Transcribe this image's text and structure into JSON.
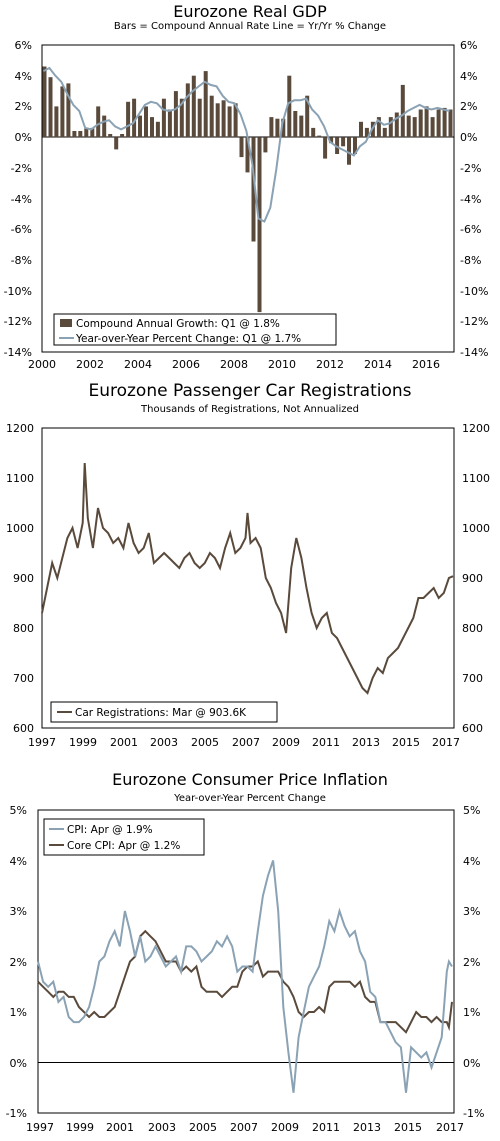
{
  "charts": [
    {
      "title": "Eurozone Real GDP",
      "subtitle": "Bars = Compound Annual Rate      Line = Yr/Yr % Change",
      "y_ticks": [
        "6%",
        "4%",
        "2%",
        "0%",
        "-2%",
        "-4%",
        "-6%",
        "-8%",
        "-10%",
        "-12%",
        "-14%"
      ],
      "x_ticks": [
        "2000",
        "2002",
        "2004",
        "2006",
        "2008",
        "2010",
        "2012",
        "2014",
        "2016"
      ],
      "legend": [
        "Compound Annual Growth: Q1 @ 1.8%",
        "Year-over-Year Percent Change: Q1 @ 1.7%"
      ]
    },
    {
      "title": "Eurozone Passenger Car Registrations",
      "subtitle": "Thousands of Registrations, Not Annualized",
      "y_ticks": [
        "1200",
        "1100",
        "1000",
        "900",
        "800",
        "700",
        "600"
      ],
      "x_ticks": [
        "1997",
        "1999",
        "2001",
        "2003",
        "2005",
        "2007",
        "2009",
        "2011",
        "2013",
        "2015",
        "2017"
      ],
      "legend": [
        "Car Registrations: Mar @ 903.6K"
      ]
    },
    {
      "title": "Eurozone Consumer Price Inflation",
      "subtitle": "Year-over-Year Percent Change",
      "y_ticks": [
        "5%",
        "4%",
        "3%",
        "2%",
        "1%",
        "0%",
        "-1%"
      ],
      "x_ticks": [
        "1997",
        "1999",
        "2001",
        "2003",
        "2005",
        "2007",
        "2009",
        "2011",
        "2013",
        "2015",
        "2017"
      ],
      "legend": [
        "CPI: Apr @ 1.9%",
        "Core CPI: Apr @ 1.2%"
      ]
    }
  ],
  "colors": {
    "bar": "#5a4a3c",
    "line_blue": "#8aa2b4",
    "line_brown": "#5a4a3c",
    "axis": "#000000"
  },
  "chart_data": [
    {
      "type": "bar",
      "title": "Eurozone Real GDP",
      "xlim": [
        2000,
        2017.25
      ],
      "ylim": [
        -14,
        6
      ],
      "y_unit": "%",
      "series": [
        {
          "name": "Compound Annual Growth",
          "x": [
            2000,
            2000.25,
            2000.5,
            2000.75,
            2001,
            2001.25,
            2001.5,
            2001.75,
            2002,
            2002.25,
            2002.5,
            2002.75,
            2003,
            2003.25,
            2003.5,
            2003.75,
            2004,
            2004.25,
            2004.5,
            2004.75,
            2005,
            2005.25,
            2005.5,
            2005.75,
            2006,
            2006.25,
            2006.5,
            2006.75,
            2007,
            2007.25,
            2007.5,
            2007.75,
            2008,
            2008.25,
            2008.5,
            2008.75,
            2009,
            2009.25,
            2009.5,
            2009.75,
            2010,
            2010.25,
            2010.5,
            2010.75,
            2011,
            2011.25,
            2011.5,
            2011.75,
            2012,
            2012.25,
            2012.5,
            2012.75,
            2013,
            2013.25,
            2013.5,
            2013.75,
            2014,
            2014.25,
            2014.5,
            2014.75,
            2015,
            2015.25,
            2015.5,
            2015.75,
            2016,
            2016.25,
            2016.5,
            2016.75,
            2017
          ],
          "values": [
            4.6,
            3.9,
            2.0,
            3.3,
            3.5,
            0.4,
            0.4,
            0.6,
            0.6,
            2.0,
            1.4,
            0.2,
            -0.8,
            0.2,
            2.3,
            2.5,
            1.4,
            2.0,
            1.3,
            1.0,
            2.5,
            1.8,
            3.0,
            2.5,
            3.5,
            4.0,
            2.5,
            4.3,
            2.7,
            2.2,
            2.4,
            2.0,
            2.2,
            -1.3,
            -2.3,
            -6.8,
            -11.4,
            -1.0,
            1.3,
            1.2,
            1.2,
            4.0,
            1.7,
            1.4,
            2.7,
            0.6,
            0.1,
            -1.4,
            -0.4,
            -1.1,
            -0.6,
            -1.8,
            -1.1,
            1.0,
            0.6,
            1.0,
            1.3,
            0.6,
            1.3,
            1.6,
            3.4,
            1.4,
            1.3,
            1.8,
            2.0,
            1.3,
            1.8,
            1.9,
            1.8
          ]
        },
        {
          "name": "Year-over-Year Percent Change",
          "type": "line",
          "x": [
            2000,
            2000.25,
            2000.5,
            2000.75,
            2001,
            2001.25,
            2001.5,
            2001.75,
            2002,
            2002.25,
            2002.5,
            2002.75,
            2003,
            2003.25,
            2003.5,
            2003.75,
            2004,
            2004.25,
            2004.5,
            2004.75,
            2005,
            2005.25,
            2005.5,
            2005.75,
            2006,
            2006.25,
            2006.5,
            2006.75,
            2007,
            2007.25,
            2007.5,
            2007.75,
            2008,
            2008.25,
            2008.5,
            2008.75,
            2009,
            2009.25,
            2009.5,
            2009.75,
            2010,
            2010.25,
            2010.5,
            2010.75,
            2011,
            2011.25,
            2011.5,
            2011.75,
            2012,
            2012.25,
            2012.5,
            2012.75,
            2013,
            2013.25,
            2013.5,
            2013.75,
            2014,
            2014.25,
            2014.5,
            2014.75,
            2015,
            2015.25,
            2015.5,
            2015.75,
            2016,
            2016.25,
            2016.5,
            2016.75,
            2017
          ],
          "values": [
            4.3,
            4.5,
            4.0,
            3.6,
            2.8,
            2.1,
            1.7,
            0.6,
            0.5,
            0.8,
            1.0,
            1.1,
            0.7,
            0.5,
            0.7,
            0.9,
            1.5,
            2.1,
            2.3,
            2.2,
            1.8,
            1.7,
            1.8,
            2.1,
            2.6,
            3.0,
            3.3,
            3.6,
            3.4,
            3.3,
            2.7,
            2.3,
            2.2,
            1.5,
            0.4,
            -1.8,
            -5.3,
            -5.5,
            -4.6,
            -2.1,
            0.9,
            2.2,
            2.4,
            2.4,
            2.5,
            1.8,
            1.4,
            0.7,
            -0.3,
            -0.6,
            -0.8,
            -1.0,
            -1.2,
            -0.6,
            -0.3,
            0.5,
            1.1,
            0.8,
            0.9,
            1.2,
            1.4,
            1.7,
            1.9,
            2.1,
            1.9,
            1.8,
            1.9,
            1.8,
            1.7
          ]
        }
      ]
    },
    {
      "type": "line",
      "title": "Eurozone Passenger Car Registrations",
      "xlim": [
        1997,
        2017.25
      ],
      "ylim": [
        600,
        1200
      ],
      "series": [
        {
          "name": "Car Registrations",
          "x": [
            1997,
            1997.25,
            1997.5,
            1997.75,
            1998,
            1998.25,
            1998.5,
            1998.75,
            1999,
            1999.1,
            1999.25,
            1999.5,
            1999.75,
            2000,
            2000.25,
            2000.5,
            2000.75,
            2001,
            2001.25,
            2001.5,
            2001.75,
            2002,
            2002.25,
            2002.5,
            2002.75,
            2003,
            2003.25,
            2003.5,
            2003.75,
            2004,
            2004.25,
            2004.5,
            2004.75,
            2005,
            2005.25,
            2005.5,
            2005.75,
            2006,
            2006.25,
            2006.5,
            2006.75,
            2007,
            2007.1,
            2007.25,
            2007.5,
            2007.75,
            2008,
            2008.25,
            2008.5,
            2008.75,
            2009,
            2009.25,
            2009.5,
            2009.75,
            2010,
            2010.25,
            2010.5,
            2010.75,
            2011,
            2011.25,
            2011.5,
            2011.75,
            2012,
            2012.25,
            2012.5,
            2012.75,
            2013,
            2013.25,
            2013.5,
            2013.75,
            2014,
            2014.25,
            2014.5,
            2014.75,
            2015,
            2015.25,
            2015.5,
            2015.75,
            2016,
            2016.25,
            2016.5,
            2016.75,
            2017,
            2017.2
          ],
          "values": [
            830,
            880,
            930,
            900,
            940,
            980,
            1000,
            960,
            1010,
            1130,
            1020,
            960,
            1040,
            1000,
            990,
            970,
            980,
            960,
            1010,
            970,
            950,
            960,
            990,
            930,
            940,
            950,
            940,
            930,
            920,
            940,
            950,
            930,
            920,
            930,
            950,
            940,
            920,
            960,
            990,
            950,
            960,
            980,
            1030,
            970,
            980,
            960,
            900,
            880,
            850,
            830,
            790,
            920,
            980,
            940,
            880,
            830,
            800,
            820,
            830,
            790,
            780,
            760,
            740,
            720,
            700,
            680,
            670,
            700,
            720,
            710,
            740,
            750,
            760,
            780,
            800,
            820,
            860,
            860,
            870,
            880,
            860,
            870,
            900,
            903.6
          ]
        }
      ]
    },
    {
      "type": "line",
      "title": "Eurozone Consumer Price Inflation",
      "xlim": [
        1997,
        2017.35
      ],
      "ylim": [
        -1,
        5
      ],
      "y_unit": "%",
      "series": [
        {
          "name": "CPI",
          "x": [
            1997,
            1997.25,
            1997.5,
            1997.75,
            1998,
            1998.25,
            1998.5,
            1998.75,
            1999,
            1999.25,
            1999.5,
            1999.75,
            2000,
            2000.25,
            2000.5,
            2000.75,
            2001,
            2001.25,
            2001.5,
            2001.75,
            2002,
            2002.25,
            2002.5,
            2002.75,
            2003,
            2003.25,
            2003.5,
            2003.75,
            2004,
            2004.25,
            2004.5,
            2004.75,
            2005,
            2005.25,
            2005.5,
            2005.75,
            2006,
            2006.25,
            2006.5,
            2006.75,
            2007,
            2007.25,
            2007.5,
            2007.75,
            2008,
            2008.25,
            2008.5,
            2008.75,
            2009,
            2009.25,
            2009.5,
            2009.75,
            2010,
            2010.25,
            2010.5,
            2010.75,
            2011,
            2011.25,
            2011.5,
            2011.75,
            2012,
            2012.25,
            2012.5,
            2012.75,
            2013,
            2013.25,
            2013.5,
            2013.75,
            2014,
            2014.25,
            2014.5,
            2014.75,
            2015,
            2015.25,
            2015.5,
            2015.75,
            2016,
            2016.25,
            2016.5,
            2016.75,
            2017,
            2017.1,
            2017.25
          ],
          "values": [
            2.0,
            1.6,
            1.5,
            1.6,
            1.2,
            1.3,
            0.9,
            0.8,
            0.8,
            0.9,
            1.1,
            1.5,
            2.0,
            2.1,
            2.4,
            2.6,
            2.3,
            3.0,
            2.6,
            2.1,
            2.5,
            2.0,
            2.1,
            2.3,
            2.1,
            1.9,
            2.0,
            2.1,
            1.8,
            2.3,
            2.3,
            2.2,
            2.0,
            2.1,
            2.2,
            2.4,
            2.3,
            2.5,
            2.3,
            1.8,
            1.9,
            1.9,
            1.8,
            2.6,
            3.3,
            3.7,
            4.0,
            3.0,
            1.1,
            0.2,
            -0.6,
            0.5,
            1.0,
            1.5,
            1.7,
            1.9,
            2.3,
            2.8,
            2.6,
            3.0,
            2.7,
            2.5,
            2.6,
            2.2,
            2.0,
            1.4,
            1.3,
            0.8,
            0.8,
            0.6,
            0.4,
            0.3,
            -0.6,
            0.3,
            0.2,
            0.1,
            0.2,
            -0.1,
            0.2,
            0.5,
            1.8,
            2.0,
            1.9
          ]
        },
        {
          "name": "Core CPI",
          "x": [
            1997,
            1997.25,
            1997.5,
            1997.75,
            1998,
            1998.25,
            1998.5,
            1998.75,
            1999,
            1999.25,
            1999.5,
            1999.75,
            2000,
            2000.25,
            2000.5,
            2000.75,
            2001,
            2001.25,
            2001.5,
            2001.75,
            2002,
            2002.25,
            2002.5,
            2002.75,
            2003,
            2003.25,
            2003.5,
            2003.75,
            2004,
            2004.25,
            2004.5,
            2004.75,
            2005,
            2005.25,
            2005.5,
            2005.75,
            2006,
            2006.25,
            2006.5,
            2006.75,
            2007,
            2007.25,
            2007.5,
            2007.75,
            2008,
            2008.25,
            2008.5,
            2008.75,
            2009,
            2009.25,
            2009.5,
            2009.75,
            2010,
            2010.25,
            2010.5,
            2010.75,
            2011,
            2011.25,
            2011.5,
            2011.75,
            2012,
            2012.25,
            2012.5,
            2012.75,
            2013,
            2013.25,
            2013.5,
            2013.75,
            2014,
            2014.25,
            2014.5,
            2014.75,
            2015,
            2015.25,
            2015.5,
            2015.75,
            2016,
            2016.25,
            2016.5,
            2016.75,
            2017,
            2017.1,
            2017.25
          ],
          "values": [
            1.6,
            1.5,
            1.4,
            1.3,
            1.4,
            1.4,
            1.3,
            1.3,
            1.1,
            1.0,
            0.9,
            1.0,
            0.9,
            0.9,
            1.0,
            1.1,
            1.4,
            1.7,
            2.0,
            2.1,
            2.5,
            2.6,
            2.5,
            2.4,
            2.2,
            2.0,
            2.0,
            2.0,
            1.8,
            1.9,
            1.8,
            1.9,
            1.5,
            1.4,
            1.4,
            1.4,
            1.3,
            1.4,
            1.5,
            1.5,
            1.8,
            1.9,
            1.9,
            2.0,
            1.7,
            1.8,
            1.8,
            1.8,
            1.6,
            1.5,
            1.3,
            1.0,
            0.9,
            1.0,
            1.0,
            1.1,
            1.0,
            1.5,
            1.6,
            1.6,
            1.6,
            1.6,
            1.5,
            1.6,
            1.3,
            1.2,
            1.2,
            0.8,
            0.8,
            0.8,
            0.8,
            0.7,
            0.6,
            0.8,
            1.0,
            0.9,
            0.9,
            0.8,
            0.9,
            0.8,
            0.8,
            0.7,
            1.2
          ]
        }
      ]
    }
  ]
}
